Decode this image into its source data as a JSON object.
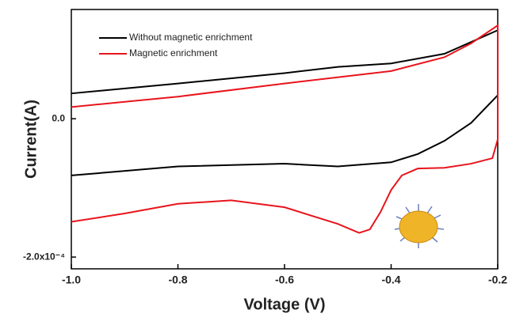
{
  "chart_data": {
    "type": "line",
    "xlabel": "Voltage (V)",
    "ylabel": "Current(A)",
    "xlim": [
      -1.0,
      -0.2
    ],
    "ylim": [
      -0.000217,
      0.000158
    ],
    "xticks": [
      {
        "value": -1.0,
        "label": "-1.0"
      },
      -0.8,
      -0.6,
      -0.4,
      -0.2
    ],
    "yticks": [
      {
        "value": -0.0002,
        "label": "-2.0x10⁻⁴"
      },
      {
        "value": 0,
        "label": "0.0"
      }
    ],
    "series": [
      {
        "name": "Without magnetic enrichment",
        "color": "#000000",
        "x": [
          -1.0,
          -0.8,
          -0.6,
          -0.5,
          -0.4,
          -0.3,
          -0.2,
          -0.2,
          -0.25,
          -0.3,
          -0.35,
          -0.4,
          -0.5,
          -0.6,
          -0.8,
          -1.0
        ],
        "values": [
          3.66e-05,
          5.1e-05,
          6.6e-05,
          7.5e-05,
          8e-05,
          9.4e-05,
          0.000128,
          3.4e-05,
          -6e-06,
          -3.2e-05,
          -5.1e-05,
          -6.3e-05,
          -6.9e-05,
          -6.5e-05,
          -6.9e-05,
          -8.2e-05
        ]
      },
      {
        "name": "Magnetic enrichment",
        "color": "#e8141c",
        "x": [
          -1.0,
          -0.8,
          -0.6,
          -0.4,
          -0.3,
          -0.25,
          -0.2,
          -0.2,
          -0.21,
          -0.25,
          -0.3,
          -0.35,
          -0.38,
          -0.4,
          -0.42,
          -0.44,
          -0.46,
          -0.5,
          -0.6,
          -0.7,
          -0.8,
          -0.9,
          -1.0
        ],
        "values": [
          1.7e-05,
          3.2e-05,
          5.1e-05,
          6.9e-05,
          8.9e-05,
          0.000109,
          0.000135,
          -3e-05,
          -5.7e-05,
          -6.5e-05,
          -7.1e-05,
          -7.2e-05,
          -8.2e-05,
          -0.000103,
          -0.000135,
          -0.00016,
          -0.000165,
          -0.000152,
          -0.000128,
          -0.000118,
          -0.000123,
          -0.000137,
          -0.000149
        ]
      }
    ]
  }
}
